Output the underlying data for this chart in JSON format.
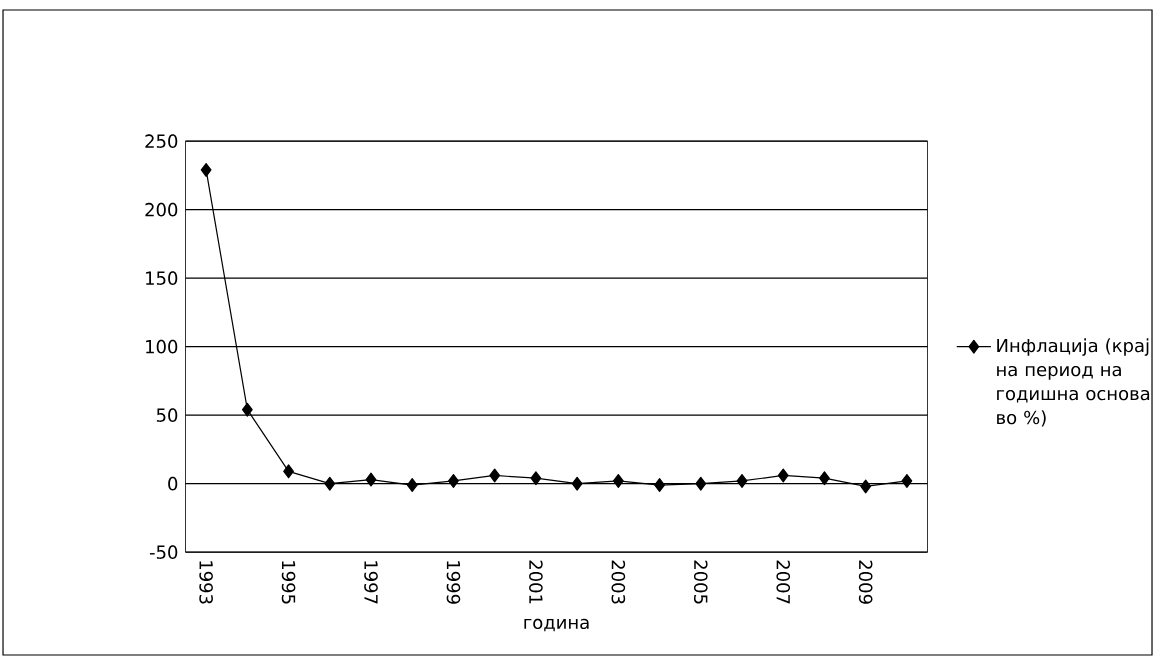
{
  "chart_data": {
    "type": "line",
    "xlabel": "година",
    "categories": [
      "1993",
      null,
      "1995",
      null,
      "1997",
      null,
      "1999",
      null,
      "2001",
      null,
      "2003",
      null,
      "2005",
      null,
      "2007",
      null,
      "2009",
      null
    ],
    "series": [
      {
        "name": "Инфлација (крај на период на годишна основа во %)",
        "color": "#000000",
        "values": [
          229,
          54,
          9,
          0,
          3,
          -1,
          2,
          6,
          4,
          0,
          2,
          -1,
          0,
          2,
          6,
          4,
          -2,
          2
        ]
      }
    ],
    "ylim": [
      -50,
      250
    ],
    "yticks": [
      -50,
      0,
      50,
      100,
      150,
      200,
      250
    ],
    "grid": "y",
    "legend": "right",
    "marker": "diamond",
    "line_style": "solid"
  }
}
